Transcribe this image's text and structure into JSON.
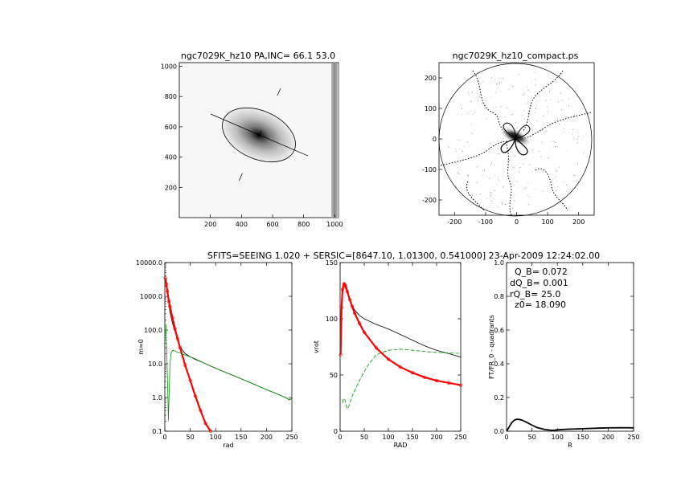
{
  "panels": {
    "image": {
      "title": "ngc7029K_hz10 PA,INC= 66.1 53.0",
      "xticks": [
        "200",
        "400",
        "600",
        "800",
        "1000"
      ],
      "yticks": [
        "200",
        "400",
        "600",
        "800",
        "1000"
      ]
    },
    "compact": {
      "title": "ngc7029K_hz10_compact.ps",
      "xticks": [
        "-200",
        "-100",
        "0",
        "100",
        "200"
      ],
      "yticks": [
        "-200",
        "-100",
        "0",
        "100",
        "200"
      ]
    }
  },
  "fit_header": "SFITS=SEEING 1.020 + SERSIC=[8647.10, 1.01300, 0.541000]  23-Apr-2009 12:24:02.00",
  "qinfo": {
    "line1": "Q_B=  0.072",
    "line2": "dQ_B=  0.001",
    "line3": "rQ_B=   25.0",
    "line4": "z0= 18.090"
  },
  "colors": {
    "total": "#000000",
    "bulge": "#ff0000",
    "disk": "#009900"
  },
  "chart_data": [
    {
      "type": "line",
      "title": "",
      "xlabel": "rad",
      "ylabel": "m=0",
      "log_y": true,
      "xlim": [
        0,
        250
      ],
      "ylim": [
        0.1,
        10000
      ],
      "xticks": [
        "0",
        "50",
        "100",
        "150",
        "200",
        "250"
      ],
      "yticks": [
        "0.1",
        "1.0",
        "10.0",
        "100.0",
        "1000.0",
        "10000.0"
      ],
      "series": [
        {
          "color_key": "total",
          "x": [
            1,
            3,
            5,
            8,
            10,
            15,
            20,
            25,
            30,
            40,
            50,
            60,
            80,
            100,
            120,
            150,
            180,
            200,
            220,
            240,
            245,
            248,
            250
          ],
          "y": [
            3500,
            2500,
            1500,
            600,
            350,
            160,
            90,
            50,
            32,
            20,
            16,
            13.5,
            10,
            7.4,
            5.5,
            3.6,
            2.3,
            1.7,
            1.3,
            0.95,
            0.85,
            0.9,
            0.92
          ]
        },
        {
          "color_key": "bulge",
          "x": [
            1,
            3,
            5,
            8,
            10,
            15,
            20,
            25,
            30,
            40,
            50,
            60,
            70,
            80,
            90,
            95
          ],
          "y": [
            3500,
            2300,
            1400,
            700,
            500,
            230,
            110,
            55,
            30,
            9,
            3.2,
            1.1,
            0.42,
            0.17,
            0.1,
            0.08
          ]
        },
        {
          "color_key": "disk",
          "x": [
            2,
            4,
            6,
            7,
            8,
            10,
            12,
            15,
            20,
            25,
            30,
            40,
            50,
            60,
            80,
            100,
            120,
            150,
            180,
            200,
            220,
            240,
            245,
            248,
            250
          ],
          "y": [
            150,
            20,
            1.2,
            0.2,
            0.8,
            8,
            20,
            25,
            24,
            22,
            21,
            18,
            16,
            14,
            10,
            7.4,
            5.5,
            3.6,
            2.3,
            1.7,
            1.3,
            0.95,
            0.85,
            0.9,
            0.92
          ]
        }
      ]
    },
    {
      "type": "line",
      "title": "",
      "xlabel": "RAD",
      "ylabel": "vrot",
      "xlim": [
        0,
        250
      ],
      "ylim": [
        0,
        150
      ],
      "xticks": [
        "0",
        "50",
        "100",
        "150",
        "200",
        "250"
      ],
      "yticks": [
        "0",
        "50",
        "100",
        "150"
      ],
      "series": [
        {
          "color_key": "total",
          "x": [
            1,
            3,
            5,
            8,
            10,
            12,
            15,
            20,
            25,
            30,
            40,
            50,
            75,
            100,
            125,
            150,
            175,
            200,
            225,
            250
          ],
          "y": [
            68,
            110,
            126,
            132,
            132,
            130,
            126,
            118,
            112,
            108,
            103,
            100,
            95,
            91,
            86,
            81,
            76,
            72,
            69,
            66
          ]
        },
        {
          "color_key": "bulge",
          "x": [
            1,
            3,
            5,
            8,
            10,
            12,
            15,
            20,
            25,
            30,
            40,
            50,
            75,
            100,
            125,
            150,
            175,
            200,
            225,
            250
          ],
          "y": [
            68,
            110,
            126,
            131,
            130,
            128,
            124,
            117,
            111,
            105,
            96,
            88,
            74,
            64,
            57,
            52,
            48,
            45,
            43,
            41
          ]
        },
        {
          "color_key": "disk",
          "x": [
            5,
            7,
            10,
            13,
            15,
            18,
            20,
            25,
            30,
            40,
            50,
            60,
            75,
            100,
            125,
            150,
            175,
            200,
            225,
            250
          ],
          "y": [
            25,
            29,
            28,
            22,
            20,
            22,
            25,
            31,
            36,
            45,
            53,
            60,
            68,
            72,
            73,
            72,
            71,
            70,
            69.5,
            69.3
          ]
        }
      ]
    },
    {
      "type": "line",
      "title": "",
      "xlabel": "R",
      "ylabel": "FT/FR_0 - quadrants",
      "xlim": [
        0,
        250
      ],
      "ylim": [
        0,
        1.0
      ],
      "xticks": [
        "0",
        "50",
        "100",
        "150",
        "200",
        "250"
      ],
      "yticks": [
        "0.0",
        "0.2",
        "0.4",
        "0.6",
        "0.8",
        "1.0"
      ],
      "series": [
        {
          "color_key": "total",
          "x": [
            0,
            5,
            10,
            15,
            20,
            25,
            30,
            40,
            50,
            60,
            75,
            90,
            100,
            120,
            150,
            180,
            200,
            225,
            250
          ],
          "y": [
            0,
            0.025,
            0.05,
            0.065,
            0.071,
            0.07,
            0.066,
            0.052,
            0.036,
            0.022,
            0.01,
            0.005,
            0.008,
            0.012,
            0.015,
            0.018,
            0.02,
            0.021,
            0.02
          ]
        }
      ]
    }
  ]
}
